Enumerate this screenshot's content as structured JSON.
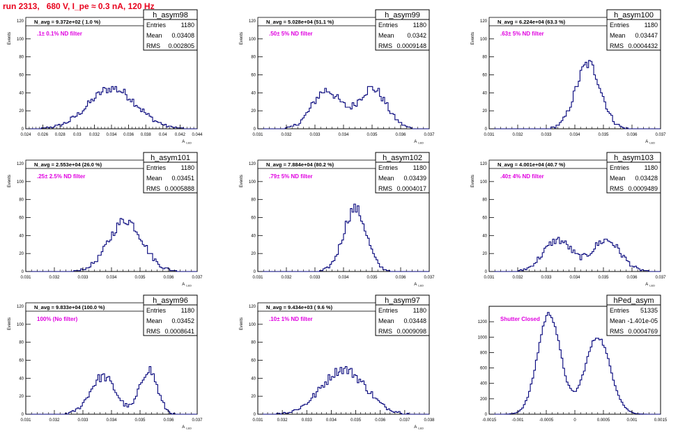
{
  "page_title": "run 2313,   680 V, I_pe ≈ 0.3 nA, 120 Hz",
  "colors": {
    "title": "#e8001c",
    "histogram": "#00007a",
    "annotation": "#e000e0",
    "axis": "#000000"
  },
  "stat_labels": {
    "entries": "Entries",
    "mean": "Mean",
    "rms": "RMS"
  },
  "chart_data": [
    {
      "type": "histogram",
      "name": "h_asym98",
      "navg": "N_avg = 9.372e+02 ( 1.0 %)",
      "note": ".1± 0.1% ND filter",
      "stats": {
        "entries": "1180",
        "mean": "0.03408",
        "rms": "0.002805"
      },
      "ylabel": "Events",
      "xlabel": "A_LED",
      "xlim": [
        0.024,
        0.044
      ],
      "ylim": [
        0,
        120
      ],
      "xticks": [
        "0.024",
        "0.026",
        "0.028",
        "0.03",
        "0.032",
        "0.034",
        "0.036",
        "0.038",
        "0.04",
        "0.042",
        "0.044"
      ],
      "yticks": [
        "0",
        "20",
        "40",
        "60",
        "80",
        "100",
        "120"
      ],
      "dist": [
        {
          "mu": 0.0341,
          "sigma": 0.0028,
          "w": 1
        }
      ],
      "nbins": 100,
      "peak": 45
    },
    {
      "type": "histogram",
      "name": "h_asym99",
      "navg": "N_avg = 5.028e+04 (51.1 %)",
      "note": ".50± 5% ND filter",
      "stats": {
        "entries": "1180",
        "mean": "0.0342",
        "rms": "0.0009148"
      },
      "ylabel": "Events",
      "xlabel": "A_LED",
      "xlim": [
        0.031,
        0.037
      ],
      "ylim": [
        0,
        120
      ],
      "xticks": [
        "0.031",
        "0.032",
        "0.033",
        "0.034",
        "0.035",
        "0.036",
        "0.037"
      ],
      "yticks": [
        "0",
        "20",
        "40",
        "60",
        "80",
        "100",
        "120"
      ],
      "dist": [
        {
          "mu": 0.0334,
          "sigma": 0.0005,
          "w": 1
        },
        {
          "mu": 0.035,
          "sigma": 0.0005,
          "w": 1.05
        }
      ],
      "nbins": 100,
      "peak": 45
    },
    {
      "type": "histogram",
      "name": "h_asym100",
      "navg": "N_avg = 6.224e+04 (63.3 %)",
      "note": ".63± 5% ND filter",
      "stats": {
        "entries": "1180",
        "mean": "0.03447",
        "rms": "0.0004432"
      },
      "ylabel": "Events",
      "xlabel": "A_LED",
      "xlim": [
        0.031,
        0.037
      ],
      "ylim": [
        0,
        120
      ],
      "xticks": [
        "0.031",
        "0.032",
        "0.033",
        "0.034",
        "0.035",
        "0.036",
        "0.037"
      ],
      "yticks": [
        "0",
        "20",
        "40",
        "60",
        "80",
        "100",
        "120"
      ],
      "dist": [
        {
          "mu": 0.03447,
          "sigma": 0.00044,
          "w": 1
        }
      ],
      "nbins": 100,
      "peak": 72
    },
    {
      "type": "histogram",
      "name": "h_asym101",
      "navg": "N_avg = 2.553e+04 (26.0 %)",
      "note": ".25± 2.5% ND filter",
      "stats": {
        "entries": "1180",
        "mean": "0.03451",
        "rms": "0.0005888"
      },
      "ylabel": "Events",
      "xlabel": "A_LED",
      "xlim": [
        0.031,
        0.037
      ],
      "ylim": [
        0,
        120
      ],
      "xticks": [
        "0.031",
        "0.032",
        "0.033",
        "0.034",
        "0.035",
        "0.036",
        "0.037"
      ],
      "yticks": [
        "0",
        "20",
        "40",
        "60",
        "80",
        "100",
        "120"
      ],
      "dist": [
        {
          "mu": 0.0345,
          "sigma": 0.00059,
          "w": 1
        }
      ],
      "nbins": 100,
      "peak": 57
    },
    {
      "type": "histogram",
      "name": "h_asym102",
      "navg": "N_avg = 7.884e+04 (80.2 %)",
      "note": ".79± 5% ND filter",
      "stats": {
        "entries": "1180",
        "mean": "0.03439",
        "rms": "0.0004017"
      },
      "ylabel": "Events",
      "xlabel": "A_LED",
      "xlim": [
        0.031,
        0.037
      ],
      "ylim": [
        0,
        120
      ],
      "xticks": [
        "0.031",
        "0.032",
        "0.033",
        "0.034",
        "0.035",
        "0.036",
        "0.037"
      ],
      "yticks": [
        "0",
        "20",
        "40",
        "60",
        "80",
        "100",
        "120"
      ],
      "dist": [
        {
          "mu": 0.0344,
          "sigma": 0.0004,
          "w": 1
        }
      ],
      "nbins": 100,
      "peak": 70
    },
    {
      "type": "histogram",
      "name": "h_asym103",
      "navg": "N_avg = 4.001e+04 (40.7 %)",
      "note": ".40± 4% ND filter",
      "stats": {
        "entries": "1180",
        "mean": "0.03428",
        "rms": "0.0009489"
      },
      "ylabel": "Events",
      "xlabel": "A_LED",
      "xlim": [
        0.031,
        0.037
      ],
      "ylim": [
        0,
        120
      ],
      "xticks": [
        "0.031",
        "0.032",
        "0.033",
        "0.034",
        "0.035",
        "0.036",
        "0.037"
      ],
      "yticks": [
        "0",
        "20",
        "40",
        "60",
        "80",
        "100",
        "120"
      ],
      "dist": [
        {
          "mu": 0.0334,
          "sigma": 0.0005,
          "w": 1
        },
        {
          "mu": 0.0351,
          "sigma": 0.0005,
          "w": 1
        }
      ],
      "nbins": 100,
      "peak": 35
    },
    {
      "type": "histogram",
      "name": "h_asym96",
      "navg": "N_avg = 9.833e+04 (100.0 %)",
      "note": "100% (No filter)",
      "stats": {
        "entries": "1180",
        "mean": "0.03452",
        "rms": "0.0008641"
      },
      "ylabel": "Events",
      "xlabel": "A_LED",
      "xlim": [
        0.031,
        0.037
      ],
      "ylim": [
        0,
        120
      ],
      "xticks": [
        "0.031",
        "0.032",
        "0.033",
        "0.034",
        "0.035",
        "0.036",
        "0.037"
      ],
      "yticks": [
        "0",
        "20",
        "40",
        "60",
        "80",
        "100",
        "120"
      ],
      "dist": [
        {
          "mu": 0.0337,
          "sigma": 0.00045,
          "w": 1
        },
        {
          "mu": 0.0353,
          "sigma": 0.0003,
          "w": 1.2
        }
      ],
      "nbins": 100,
      "peak": 50
    },
    {
      "type": "histogram",
      "name": "h_asym97",
      "navg": "N_avg = 9.434e+03 ( 9.6 %)",
      "note": ".10± 1% ND filter",
      "stats": {
        "entries": "1180",
        "mean": "0.03448",
        "rms": "0.0009098"
      },
      "ylabel": "Events",
      "xlabel": "A_LED",
      "xlim": [
        0.031,
        0.038
      ],
      "ylim": [
        0,
        120
      ],
      "xticks": [
        "0.031",
        "0.032",
        "0.033",
        "0.034",
        "0.035",
        "0.036",
        "0.037",
        "0.038"
      ],
      "yticks": [
        "0",
        "20",
        "40",
        "60",
        "80",
        "100",
        "120"
      ],
      "dist": [
        {
          "mu": 0.0345,
          "sigma": 0.0009,
          "w": 1
        }
      ],
      "nbins": 100,
      "peak": 50
    },
    {
      "type": "histogram",
      "name": "hPed_asym",
      "navg": "",
      "note": "Shutter Closed",
      "stats": {
        "entries": "51335",
        "mean": "-1.401e-05",
        "rms": "0.0004769"
      },
      "ylabel": "",
      "xlabel": "",
      "xlim": [
        -0.0015,
        0.0015
      ],
      "ylim": [
        0,
        1400
      ],
      "xticks": [
        "-0.0015",
        "-0.001",
        "-0.0005",
        "0",
        "0.0005",
        "0.001",
        "0.0015"
      ],
      "yticks": [
        "0",
        "200",
        "400",
        "600",
        "800",
        "1000",
        "1200"
      ],
      "dist": [
        {
          "mu": -0.00045,
          "sigma": 0.0002,
          "w": 1.3
        },
        {
          "mu": 0.0004,
          "sigma": 0.00022,
          "w": 1
        }
      ],
      "nbins": 100,
      "peak": 1300
    }
  ]
}
